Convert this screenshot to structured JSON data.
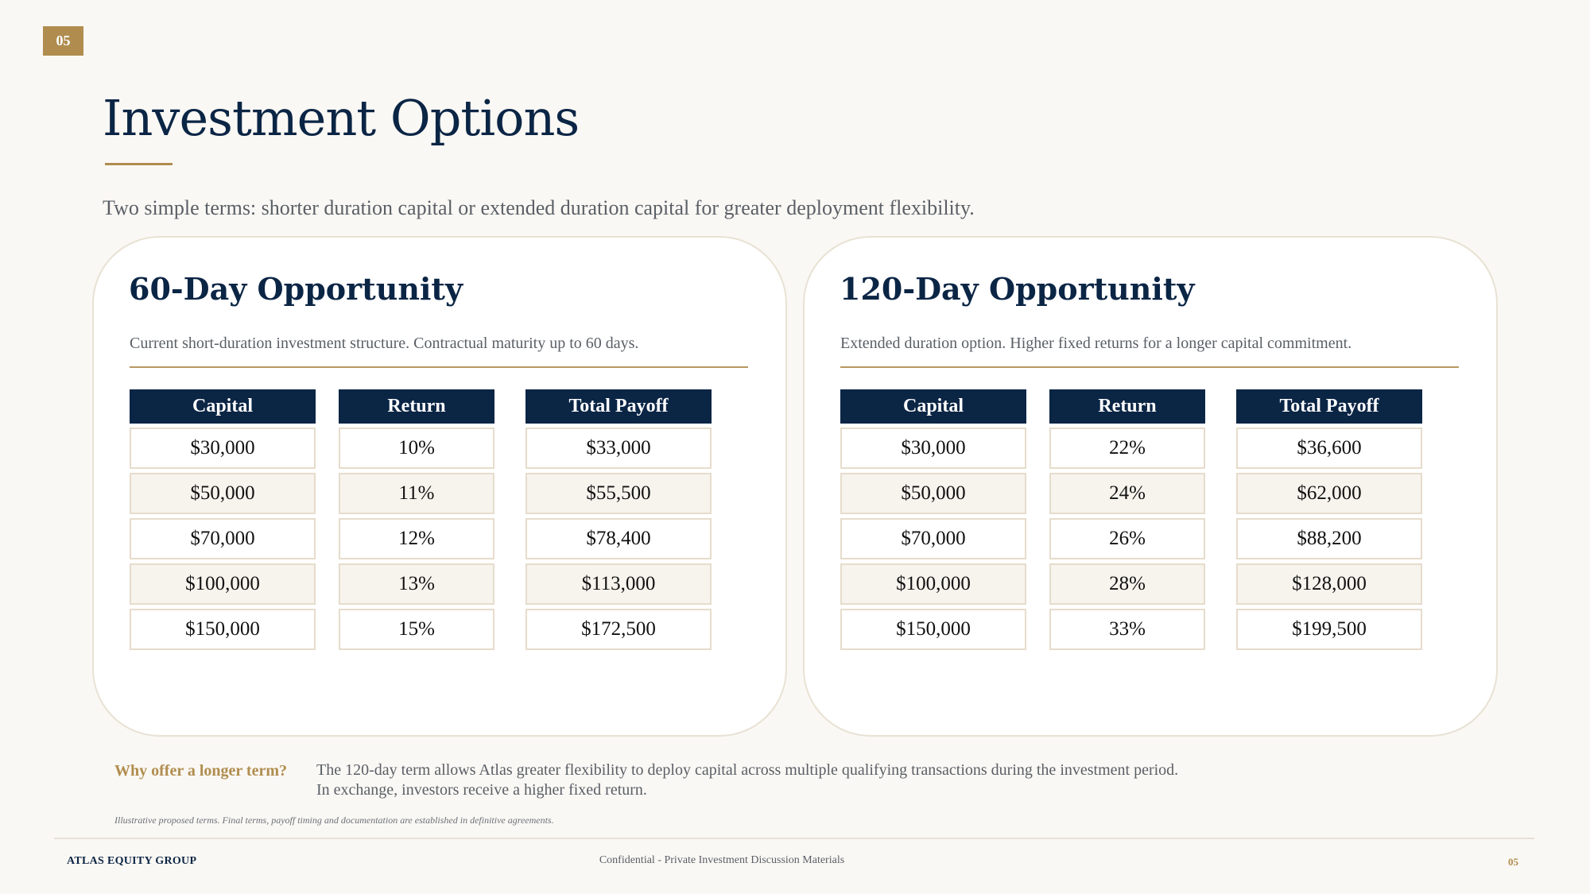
{
  "page_number": "05",
  "title": "Investment Options",
  "subtitle": "Two simple terms: shorter duration capital or extended duration capital for greater deployment flexibility.",
  "cards": [
    {
      "title": "60-Day Opportunity",
      "description": "Current short-duration investment structure. Contractual maturity up to 60 days.",
      "headers": [
        "Capital",
        "Return",
        "Total Payoff"
      ],
      "rows": [
        [
          "$30,000",
          "10%",
          "$33,000"
        ],
        [
          "$50,000",
          "11%",
          "$55,500"
        ],
        [
          "$70,000",
          "12%",
          "$78,400"
        ],
        [
          "$100,000",
          "13%",
          "$113,000"
        ],
        [
          "$150,000",
          "15%",
          "$172,500"
        ]
      ]
    },
    {
      "title": "120-Day Opportunity",
      "description": "Extended duration option. Higher fixed returns for a longer capital commitment.",
      "headers": [
        "Capital",
        "Return",
        "Total Payoff"
      ],
      "rows": [
        [
          "$30,000",
          "22%",
          "$36,600"
        ],
        [
          "$50,000",
          "24%",
          "$62,000"
        ],
        [
          "$70,000",
          "26%",
          "$88,200"
        ],
        [
          "$100,000",
          "28%",
          "$128,000"
        ],
        [
          "$150,000",
          "33%",
          "$199,500"
        ]
      ]
    }
  ],
  "why": {
    "label": "Why offer a longer term?",
    "line1": "The 120-day term allows Atlas greater flexibility to deploy capital across multiple qualifying transactions during the investment period.",
    "line2": "In exchange, investors receive a higher fixed return."
  },
  "disclaimer": "Illustrative proposed terms. Final terms, payoff timing and documentation are established in definitive agreements.",
  "footer": {
    "company": "ATLAS EQUITY GROUP",
    "confidential": "Confidential - Private Investment Discussion Materials",
    "page": "05"
  },
  "colors": {
    "navy": "#0b2545",
    "gold": "#b08d4f",
    "background": "#faf8f4"
  }
}
